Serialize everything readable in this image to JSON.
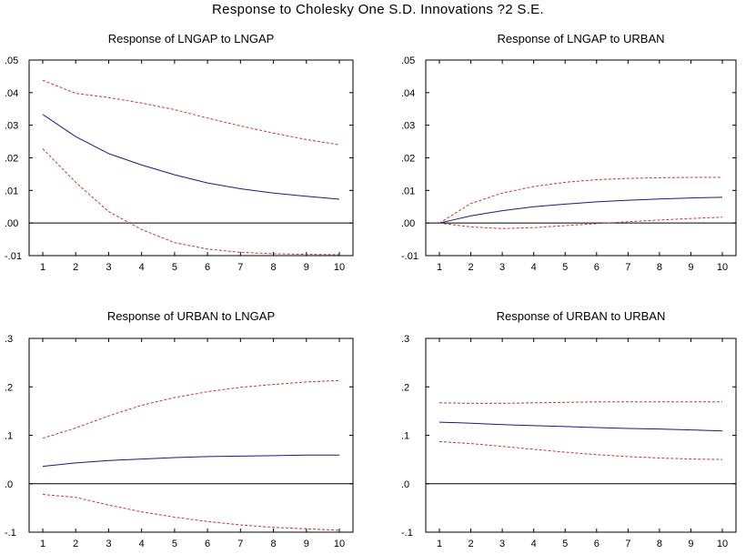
{
  "figure": {
    "title": "Response to Cholesky One S.D. Innovations ?2 S.E."
  },
  "colors": {
    "response": "#1a1a7a",
    "band": "#c0392b",
    "axis": "#000000",
    "frame": "#000000"
  },
  "chart_data": [
    {
      "type": "line",
      "title": "Response of LNGAP to LNGAP",
      "x": [
        1,
        2,
        3,
        4,
        5,
        6,
        7,
        8,
        9,
        10
      ],
      "ylim": [
        -0.01,
        0.05
      ],
      "yticks": [
        -0.01,
        0.0,
        0.01,
        0.02,
        0.03,
        0.04,
        0.05
      ],
      "ytick_labels": [
        "-.01",
        ".00",
        ".01",
        ".02",
        ".03",
        ".04",
        ".05"
      ],
      "series": [
        {
          "name": "Response",
          "style": "solid",
          "values": [
            0.0333,
            0.0265,
            0.0213,
            0.0178,
            0.0148,
            0.0123,
            0.0105,
            0.0092,
            0.0082,
            0.0073
          ]
        },
        {
          "name": "+2 S.E.",
          "style": "dashed",
          "values": [
            0.0438,
            0.0398,
            0.0385,
            0.0368,
            0.0348,
            0.0322,
            0.0298,
            0.0276,
            0.0256,
            0.024
          ]
        },
        {
          "name": "-2 S.E.",
          "style": "dashed",
          "values": [
            0.0228,
            0.0125,
            0.0035,
            -0.002,
            -0.006,
            -0.008,
            -0.009,
            -0.0094,
            -0.0096,
            -0.0097
          ]
        }
      ]
    },
    {
      "type": "line",
      "title": "Response of LNGAP to URBAN",
      "x": [
        1,
        2,
        3,
        4,
        5,
        6,
        7,
        8,
        9,
        10
      ],
      "ylim": [
        -0.01,
        0.05
      ],
      "yticks": [
        -0.01,
        0.0,
        0.01,
        0.02,
        0.03,
        0.04,
        0.05
      ],
      "ytick_labels": [
        "-.01",
        ".00",
        ".01",
        ".02",
        ".03",
        ".04",
        ".05"
      ],
      "series": [
        {
          "name": "Response",
          "style": "solid",
          "values": [
            0.0,
            0.0022,
            0.0038,
            0.005,
            0.0058,
            0.0065,
            0.007,
            0.0074,
            0.0077,
            0.0079
          ]
        },
        {
          "name": "+2 S.E.",
          "style": "dashed",
          "values": [
            0.0,
            0.006,
            0.0092,
            0.0112,
            0.0125,
            0.0133,
            0.0137,
            0.0139,
            0.014,
            0.014
          ]
        },
        {
          "name": "-2 S.E.",
          "style": "dashed",
          "values": [
            0.0,
            -0.0012,
            -0.0017,
            -0.0014,
            -0.0008,
            -0.0002,
            0.0004,
            0.0009,
            0.0014,
            0.0018
          ]
        }
      ]
    },
    {
      "type": "line",
      "title": "Response of URBAN to LNGAP",
      "x": [
        1,
        2,
        3,
        4,
        5,
        6,
        7,
        8,
        9,
        10
      ],
      "ylim": [
        -0.1,
        0.3
      ],
      "yticks": [
        -0.1,
        0.0,
        0.1,
        0.2,
        0.3
      ],
      "ytick_labels": [
        "-.1",
        ".0",
        ".1",
        ".2",
        ".3"
      ],
      "series": [
        {
          "name": "Response",
          "style": "solid",
          "values": [
            0.036,
            0.043,
            0.048,
            0.051,
            0.054,
            0.056,
            0.057,
            0.058,
            0.059,
            0.059
          ]
        },
        {
          "name": "+2 S.E.",
          "style": "dashed",
          "values": [
            0.094,
            0.115,
            0.14,
            0.162,
            0.178,
            0.19,
            0.199,
            0.205,
            0.21,
            0.213
          ]
        },
        {
          "name": "-2 S.E.",
          "style": "dashed",
          "values": [
            -0.022,
            -0.028,
            -0.044,
            -0.058,
            -0.069,
            -0.078,
            -0.085,
            -0.09,
            -0.093,
            -0.096
          ]
        }
      ]
    },
    {
      "type": "line",
      "title": "Response of URBAN to URBAN",
      "x": [
        1,
        2,
        3,
        4,
        5,
        6,
        7,
        8,
        9,
        10
      ],
      "ylim": [
        -0.1,
        0.3
      ],
      "yticks": [
        -0.1,
        0.0,
        0.1,
        0.2,
        0.3
      ],
      "ytick_labels": [
        "-.1",
        ".0",
        ".1",
        ".2",
        ".3"
      ],
      "series": [
        {
          "name": "Response",
          "style": "solid",
          "values": [
            0.127,
            0.125,
            0.122,
            0.12,
            0.118,
            0.116,
            0.114,
            0.113,
            0.111,
            0.109
          ]
        },
        {
          "name": "+2 S.E.",
          "style": "dashed",
          "values": [
            0.167,
            0.166,
            0.166,
            0.167,
            0.168,
            0.169,
            0.169,
            0.169,
            0.169,
            0.169
          ]
        },
        {
          "name": "-2 S.E.",
          "style": "dashed",
          "values": [
            0.087,
            0.083,
            0.077,
            0.071,
            0.065,
            0.06,
            0.056,
            0.053,
            0.051,
            0.05
          ]
        }
      ]
    }
  ]
}
